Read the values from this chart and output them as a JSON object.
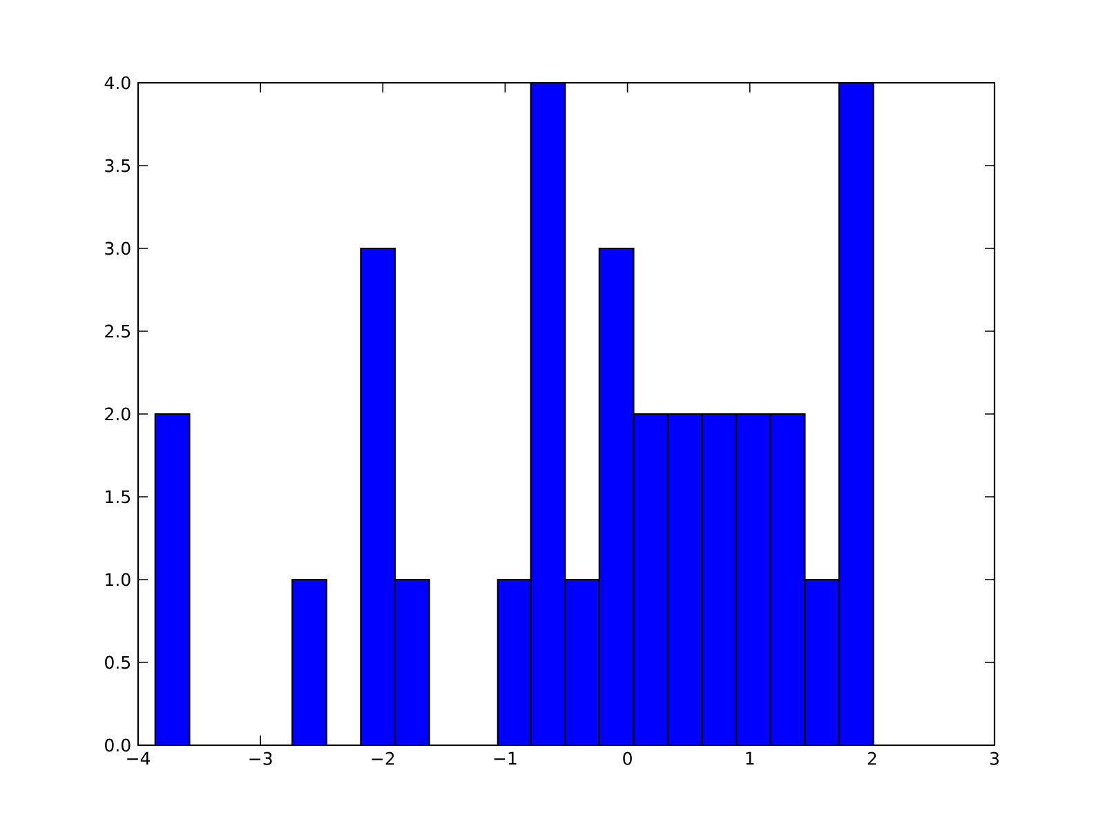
{
  "chart_data": {
    "type": "histogram",
    "bins": [
      -3.86,
      -3.58,
      -2.74,
      -2.46,
      -2.18,
      -1.9,
      -1.62,
      -1.06,
      -0.79,
      -0.51,
      -0.23,
      0.05,
      0.33,
      0.61,
      0.89,
      1.17,
      1.45,
      1.73,
      2.01
    ],
    "values": [
      2,
      0,
      1,
      0,
      3,
      1,
      0,
      1,
      4,
      1,
      3,
      2,
      2,
      2,
      2,
      2,
      1,
      4
    ],
    "color": "#0000ff",
    "xlim": [
      -4,
      3
    ],
    "ylim": [
      0,
      4
    ],
    "xticks": [
      {
        "value": -4,
        "label": "−4"
      },
      {
        "value": -3,
        "label": "−3"
      },
      {
        "value": -2,
        "label": "−2"
      },
      {
        "value": -1,
        "label": "−1"
      },
      0,
      1,
      2,
      3
    ],
    "yticks": [
      {
        "value": 0,
        "label": "0.0"
      },
      {
        "value": 0.5,
        "label": "0.5"
      },
      {
        "value": 1,
        "label": "1.0"
      },
      {
        "value": 1.5,
        "label": "1.5"
      },
      {
        "value": 2,
        "label": "2.0"
      },
      {
        "value": 2.5,
        "label": "2.5"
      },
      {
        "value": 3,
        "label": "3.0"
      },
      {
        "value": 3.5,
        "label": "3.5"
      },
      {
        "value": 4,
        "label": "4.0"
      }
    ]
  }
}
